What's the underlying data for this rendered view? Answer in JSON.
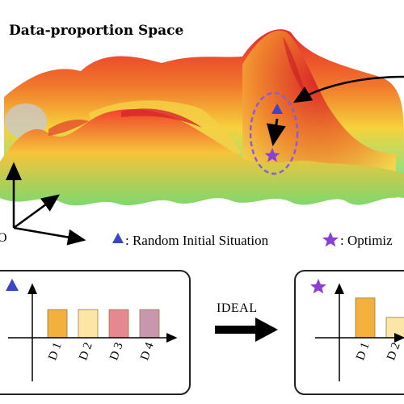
{
  "figure": {
    "title": "Data-proportion Space",
    "axis_label_partial": "O",
    "legend": {
      "initial_label": ": Random Initial Situation",
      "optimized_label": ": Optimiz"
    },
    "arrow_label": "IDEAL",
    "colors": {
      "triangle": "#3b46c6",
      "star": "#8a3fd6",
      "dashed_ellipse": "#8e5ad8"
    }
  },
  "chart_data": [
    {
      "type": "bar",
      "categories": [
        "D 1",
        "D 2",
        "D 3",
        "D 4"
      ],
      "values": [
        0.58,
        0.58,
        0.58,
        0.58
      ],
      "colors": [
        "#f2b13d",
        "#fbe6a8",
        "#e6888f",
        "#c896ad"
      ],
      "title": "",
      "xlabel": "",
      "ylabel": ""
    },
    {
      "type": "bar",
      "categories": [
        "D 1",
        "D 2"
      ],
      "values": [
        0.82,
        0.42
      ],
      "colors": [
        "#f2b13d",
        "#fbe6a8"
      ],
      "title": "",
      "xlabel": "",
      "ylabel": ""
    }
  ]
}
